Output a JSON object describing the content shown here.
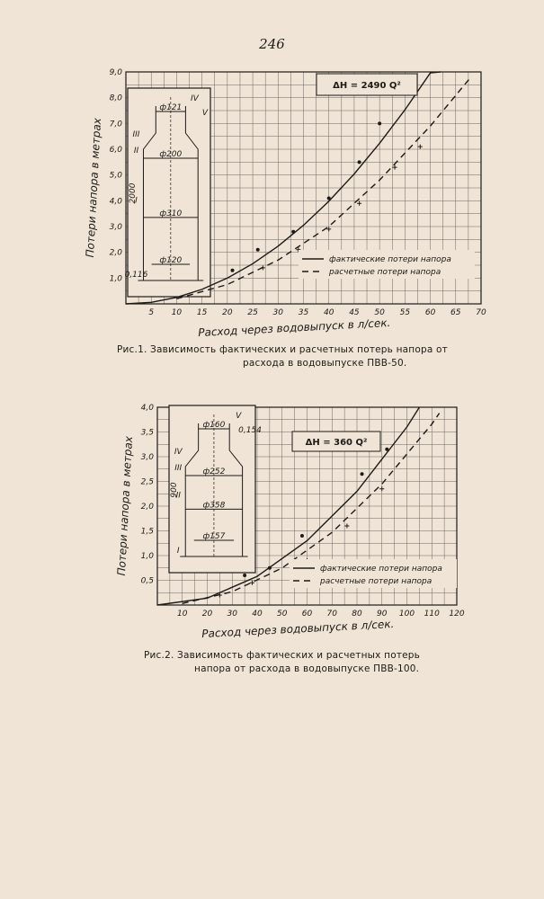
{
  "page_number": "246",
  "chart_data": [
    {
      "type": "line",
      "xlabel": "Расход через водовыпуск в л/сек.",
      "ylabel": "Потери напора в метрах",
      "xlim": [
        0,
        70
      ],
      "ylim": [
        0,
        9.0
      ],
      "x_ticks": [
        5,
        10,
        15,
        20,
        25,
        30,
        35,
        40,
        45,
        50,
        55,
        60,
        65,
        70
      ],
      "y_ticks": [
        "1,0",
        "2,0",
        "3,0",
        "4,0",
        "5,0",
        "6,0",
        "7,0",
        "8,0",
        "9,0"
      ],
      "grid": true,
      "formula": "ΔH = 2490 Q²",
      "legend_position": "lower-right",
      "series": [
        {
          "name": "фактические потери напора",
          "style": "solid",
          "curve_x": [
            0,
            5,
            10,
            15,
            20,
            25,
            30,
            35,
            40,
            45,
            50,
            55,
            60,
            62
          ],
          "curve_y": [
            0,
            0.06,
            0.25,
            0.56,
            1.0,
            1.56,
            2.24,
            3.05,
            3.98,
            5.04,
            6.23,
            7.53,
            8.96,
            9.0
          ],
          "points_x": [
            21,
            26,
            33,
            40,
            46,
            50,
            57
          ],
          "points_y": [
            1.3,
            2.1,
            2.8,
            4.1,
            5.5,
            7.0,
            8.3
          ]
        },
        {
          "name": "расчетные потери напора",
          "style": "dashed",
          "curve_x": [
            10,
            20,
            30,
            40,
            50,
            60,
            68
          ],
          "curve_y": [
            0.2,
            0.75,
            1.7,
            3.0,
            4.8,
            6.9,
            8.8
          ],
          "points_x": [
            27,
            34,
            40,
            46,
            53,
            58
          ],
          "points_y": [
            1.4,
            2.1,
            2.9,
            3.9,
            5.3,
            6.1
          ]
        }
      ],
      "inset": {
        "dims": [
          "ф121",
          "ф200",
          "ф310",
          "ф120"
        ],
        "height": "2000",
        "marks": [
          "0,116",
          "I",
          "II",
          "III",
          "IV",
          "V"
        ]
      }
    },
    {
      "type": "line",
      "xlabel": "Расход через водовыпуск в л/сек.",
      "ylabel": "Потери напора в метрах",
      "xlim": [
        0,
        120
      ],
      "ylim": [
        0,
        4.0
      ],
      "x_ticks": [
        10,
        20,
        30,
        40,
        50,
        60,
        70,
        80,
        90,
        100,
        110,
        120
      ],
      "y_ticks": [
        "0,5",
        "1,0",
        "1,5",
        "2,0",
        "2,5",
        "3,0",
        "3,5",
        "4,0"
      ],
      "grid": true,
      "formula": "ΔH = 360 Q²",
      "legend_position": "lower-right",
      "series": [
        {
          "name": "фактические потери напора",
          "style": "solid",
          "curve_x": [
            0,
            20,
            40,
            60,
            80,
            100,
            105
          ],
          "curve_y": [
            0,
            0.14,
            0.58,
            1.3,
            2.3,
            3.6,
            4.0
          ],
          "points_x": [
            35,
            45,
            58,
            82,
            92
          ],
          "points_y": [
            0.6,
            0.75,
            1.4,
            2.65,
            3.15
          ]
        },
        {
          "name": "расчетные потери напора",
          "style": "dashed",
          "curve_x": [
            10,
            30,
            50,
            70,
            90,
            110,
            113
          ],
          "curve_y": [
            0.03,
            0.27,
            0.75,
            1.47,
            2.45,
            3.66,
            3.88
          ],
          "points_x": [
            25,
            38,
            60,
            76,
            90
          ],
          "points_y": [
            0.2,
            0.45,
            0.9,
            1.6,
            2.35
          ]
        }
      ],
      "inset": {
        "dims": [
          "ф160",
          "ф252",
          "ф358",
          "ф157"
        ],
        "height": "900",
        "marks": [
          "I",
          "II",
          "III",
          "IV",
          "V",
          "0,154"
        ]
      }
    }
  ],
  "captions": {
    "fig1_line1": "Рис.1.   Зависимость фактических и расчетных потерь напора от",
    "fig1_line2": "расхода в водовыпуске ПВВ-50.",
    "fig2_line1": "Рис.2.  Зависимость фактических и расчетных потерь",
    "fig2_line2": "напора от расхода в водовыпуске ПВВ-100."
  }
}
